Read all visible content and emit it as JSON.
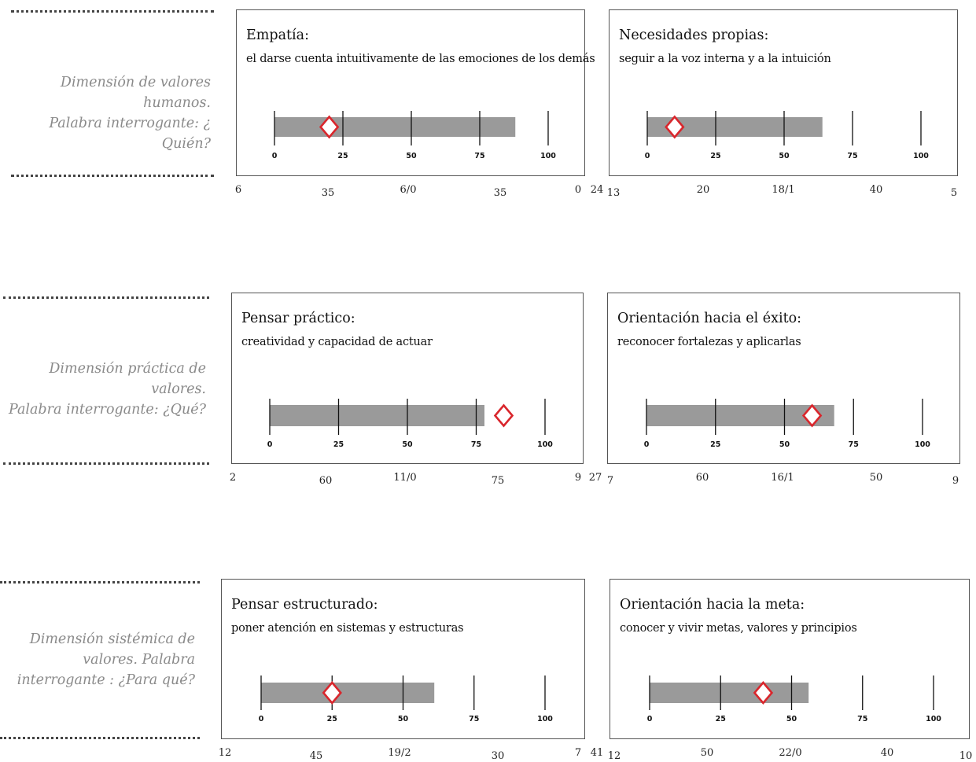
{
  "colors": {
    "bar": "#9a9a9a",
    "marker": "#d9262c",
    "tick": "#111111",
    "label": "#8a8a8a"
  },
  "dimensions": [
    {
      "label_lines": [
        "Dimensión de valores humanos.",
        "Palabra interrogante: ¿ Quién?"
      ]
    },
    {
      "label_lines": [
        "Dimensión práctica de valores.",
        "Palabra interrogante: ¿Qué?"
      ]
    },
    {
      "label_lines": [
        "Dimensión sistémica de",
        "valores. Palabra",
        "interrogante : ¿Para qué?"
      ]
    }
  ],
  "chart_data": [
    {
      "type": "bar",
      "title": "Empatía:",
      "subtitle": "el darse cuenta intuitivamente de las emociones de los demás",
      "ticks": [
        0,
        25,
        50,
        75,
        100
      ],
      "xlim": [
        0,
        100
      ],
      "bar_value": 88,
      "marker_value": 20,
      "bottom_numbers": [
        "6",
        "35",
        "6/0",
        "35",
        "0"
      ]
    },
    {
      "type": "bar",
      "title": "Necesidades propias:",
      "subtitle": "seguir a la voz interna y a la intuición",
      "ticks": [
        0,
        25,
        50,
        75,
        100
      ],
      "xlim": [
        0,
        100
      ],
      "bar_value": 64,
      "marker_value": 10,
      "bottom_numbers": [
        "24",
        "13",
        "20",
        "18/1",
        "40",
        "5"
      ]
    },
    {
      "type": "bar",
      "title": "Pensar práctico:",
      "subtitle": "creatividad  y capacidad de actuar",
      "ticks": [
        0,
        25,
        50,
        75,
        100
      ],
      "xlim": [
        0,
        100
      ],
      "bar_value": 78,
      "marker_value": 85,
      "bottom_numbers": [
        "2",
        "60",
        "11/0",
        "75",
        "9"
      ]
    },
    {
      "type": "bar",
      "title": "Orientación hacia el éxito:",
      "subtitle": "reconocer fortalezas y aplicarlas",
      "ticks": [
        0,
        25,
        50,
        75,
        100
      ],
      "xlim": [
        0,
        100
      ],
      "bar_value": 68,
      "marker_value": 60,
      "bottom_numbers": [
        "27",
        "7",
        "60",
        "16/1",
        "50",
        "9"
      ]
    },
    {
      "type": "bar",
      "title": "Pensar estructurado:",
      "subtitle": "poner atención en sistemas y estructuras",
      "ticks": [
        0,
        25,
        50,
        75,
        100
      ],
      "xlim": [
        0,
        100
      ],
      "bar_value": 61,
      "marker_value": 25,
      "bottom_numbers": [
        "12",
        "45",
        "19/2",
        "30",
        "7"
      ]
    },
    {
      "type": "bar",
      "title": "Orientación hacia la meta:",
      "subtitle": "conocer y vivir metas, valores y principios",
      "ticks": [
        0,
        25,
        50,
        75,
        100
      ],
      "xlim": [
        0,
        100
      ],
      "bar_value": 56,
      "marker_value": 40,
      "bottom_numbers": [
        "41",
        "12",
        "50",
        "22/0",
        "40",
        "10"
      ]
    }
  ]
}
